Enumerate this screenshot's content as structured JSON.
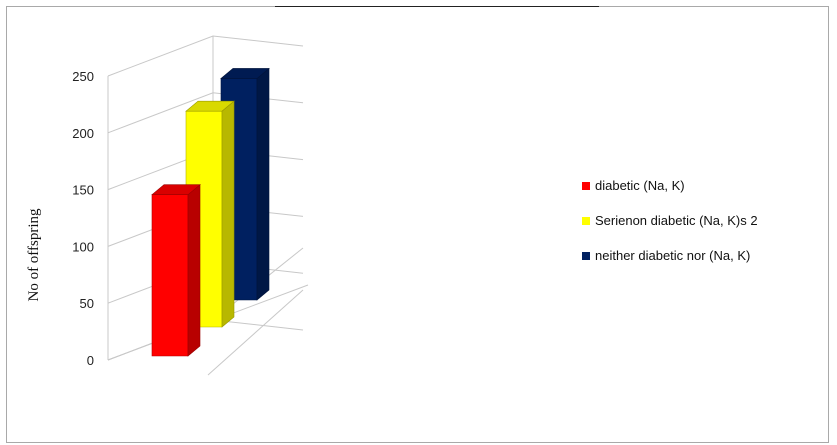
{
  "chart_data": {
    "type": "bar",
    "style": "3d-clustered",
    "title": "",
    "xlabel": "",
    "ylabel": "No of offspring",
    "ylim": [
      0,
      250
    ],
    "yticks": [
      0,
      50,
      100,
      150,
      200,
      250
    ],
    "grid": true,
    "legend_position": "right",
    "series": [
      {
        "name": "diabetic (Na,  K)",
        "value": 142,
        "color": "#ff0000"
      },
      {
        "name": "Serienon diabetic (Na,  K)s 2",
        "value": 190,
        "color": "#ffff00"
      },
      {
        "name": "neither diabetic nor (Na,  K)",
        "value": 195,
        "color": "#002060"
      }
    ]
  }
}
